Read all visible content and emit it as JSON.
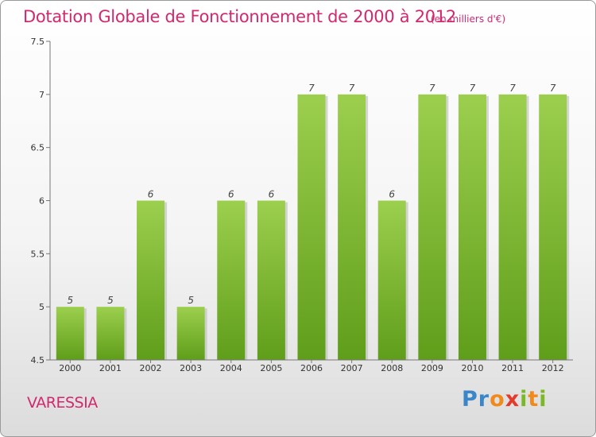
{
  "chart_data": {
    "type": "bar",
    "title": "Dotation Globale de Fonctionnement de 2000 à 2012",
    "unit_label": "(en milliers d'€)",
    "categories": [
      "2000",
      "2001",
      "2002",
      "2003",
      "2004",
      "2005",
      "2006",
      "2007",
      "2008",
      "2009",
      "2010",
      "2011",
      "2012"
    ],
    "values": [
      5,
      5,
      6,
      5,
      6,
      6,
      7,
      7,
      6,
      7,
      7,
      7,
      7
    ],
    "value_labels": [
      "5",
      "5",
      "6",
      "5",
      "6",
      "6",
      "7",
      "7",
      "6",
      "7",
      "7",
      "7",
      "7"
    ],
    "ylim": [
      4.5,
      7.5
    ],
    "yticks": [
      4.5,
      5,
      5.5,
      6,
      6.5,
      7,
      7.5
    ],
    "ytick_labels": [
      "4.5",
      "5",
      "5.5",
      "6",
      "6.5",
      "7",
      "7.5"
    ],
    "xlabel": "",
    "ylabel": "",
    "grid": false,
    "colors": {
      "bar_top": "#9ccf4e",
      "bar_bottom": "#5f9e1a",
      "title": "#d2286e"
    }
  },
  "footer": {
    "commune": "VARESSIA",
    "logo_letters": [
      "P",
      "r",
      "o",
      "x",
      "i",
      "t",
      "i"
    ],
    "logo_colors": [
      "#3a86c8",
      "#3a86c8",
      "#f08a1c",
      "#e33a2c",
      "#7ab827",
      "#f08a1c",
      "#7ab827"
    ]
  }
}
